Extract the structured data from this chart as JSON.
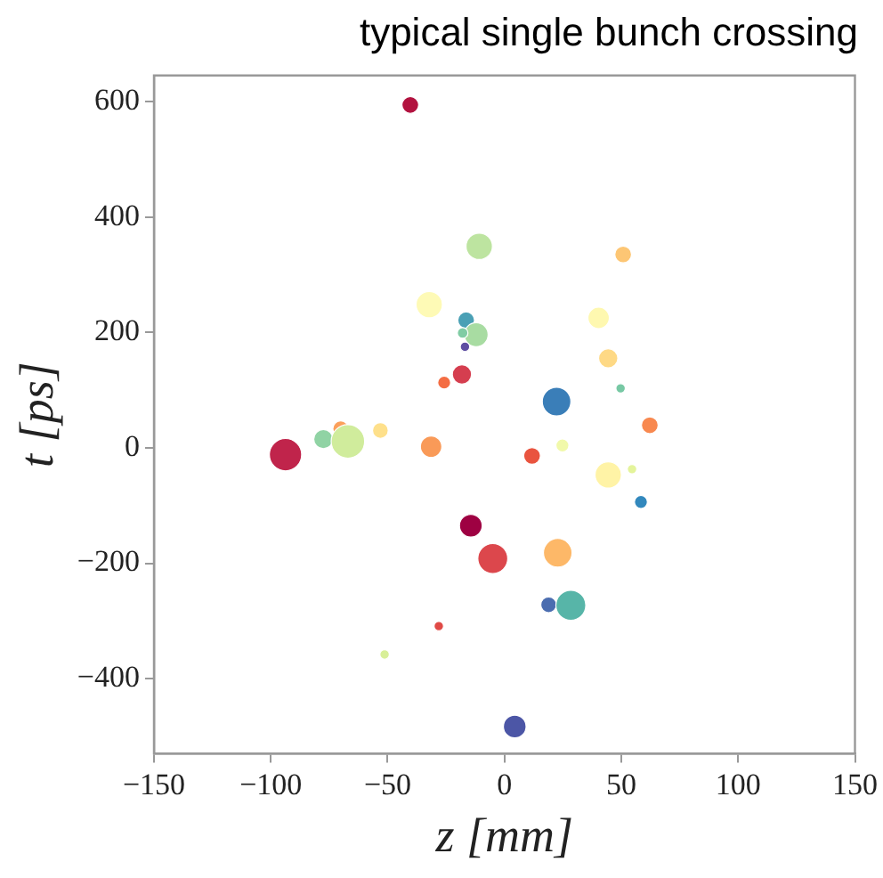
{
  "chart_data": {
    "type": "bubble",
    "title": "typical single bunch crossing",
    "xlabel": "z [mm]",
    "ylabel": "t [ps]",
    "xlim": [
      -150,
      150
    ],
    "xticks": [
      -150,
      -100,
      -50,
      0,
      50,
      100,
      150
    ],
    "ylim": [
      -530,
      645
    ],
    "yticks": [
      -400,
      -200,
      0,
      200,
      400,
      600
    ],
    "grid": false,
    "legend": false,
    "marker": "circle",
    "x": [
      -40.3,
      -10.8,
      50.8,
      -32.2,
      -16.4,
      -12.1,
      -17.9,
      -16.9,
      40.3,
      44.4,
      49.7,
      -18.2,
      -25.8,
      22.3,
      62.2,
      -70.1,
      -53.1,
      -77.5,
      -67,
      -93.7,
      -31.4,
      11.8,
      24.8,
      44.4,
      54.6,
      58.4,
      -14.4,
      -5,
      22.8,
      18.9,
      28.4,
      -28.1,
      -51.3,
      4.4
    ],
    "values": [
      594,
      349,
      335,
      248,
      221,
      196,
      199,
      175,
      225,
      155,
      103,
      127,
      113,
      80,
      39,
      33,
      30,
      15,
      11,
      -12,
      2,
      -14,
      4,
      -47,
      -37,
      -94,
      -135,
      -192,
      -182,
      -272,
      -273,
      -309,
      -358,
      -483
    ],
    "sizes": [
      0.25,
      0.62,
      0.25,
      0.62,
      0.25,
      0.51,
      0.1,
      0.08,
      0.41,
      0.33,
      0.08,
      0.33,
      0.15,
      0.73,
      0.25,
      0.22,
      0.22,
      0.33,
      1,
      0.93,
      0.41,
      0.25,
      0.15,
      0.62,
      0.08,
      0.15,
      0.46,
      0.8,
      0.73,
      0.22,
      0.8,
      0.08,
      0.08,
      0.46
    ],
    "colors": [
      "#b2123f",
      "#bde4a0",
      "#fdc674",
      "#fefab6",
      "#4aa0b5",
      "#a8dca2",
      "#80cca4",
      "#5e4fa2",
      "#fef8b0",
      "#fed985",
      "#77c8a4",
      "#d53e4f",
      "#f46d43",
      "#3a7eb8",
      "#f88950",
      "#fba05b",
      "#fee08b",
      "#90d3a4",
      "#d0ec9c",
      "#c0244b",
      "#f99a58",
      "#e9543f",
      "#f1f9aa",
      "#fff3a6",
      "#e4f49b",
      "#3288bd",
      "#9e0142",
      "#dc474c",
      "#fdb868",
      "#4b6db0",
      "#57b5a8",
      "#e04a46",
      "#d8ef98",
      "#4c56a6"
    ]
  }
}
